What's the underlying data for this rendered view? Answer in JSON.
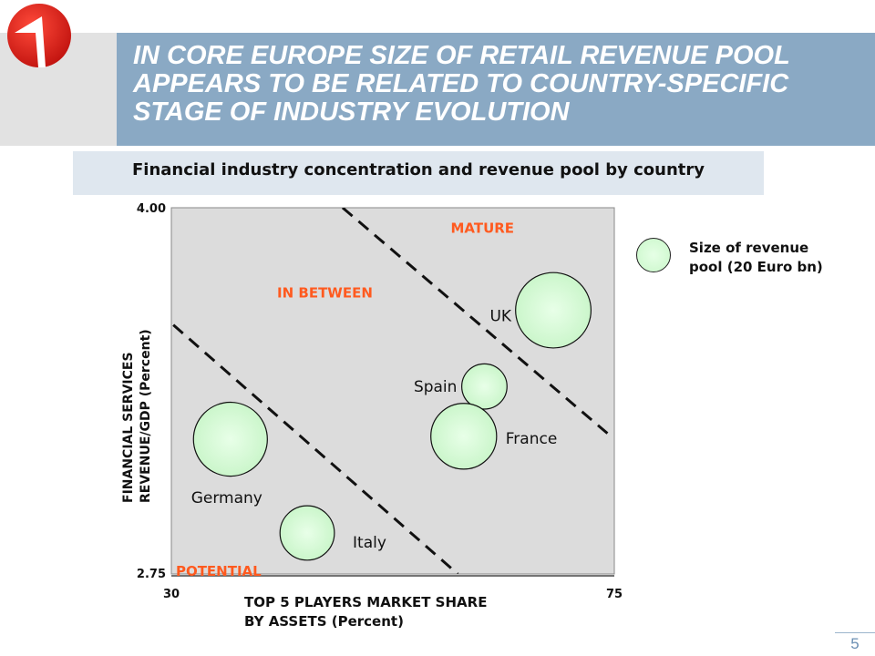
{
  "header": {
    "title_lines": [
      "IN CORE EUROPE SIZE OF RETAIL REVENUE POOL",
      "APPEARS TO BE RELATED TO COUNTRY-SPECIFIC",
      "STAGE OF INDUSTRY EVOLUTION"
    ],
    "subtitle": "Financial industry concentration and revenue pool by country"
  },
  "legend": {
    "line1": "Size of revenue",
    "line2": "pool (20 Euro bn)"
  },
  "page_number": "5",
  "colors": {
    "title_band": "#8aa9c4",
    "logo_red": "#d9231f",
    "region_label": "#ff5a1f",
    "plot_bg": "#dcdcdc",
    "bubble_fill": "#ccf7cc"
  },
  "chart_data": {
    "type": "scatter",
    "xlabel_lines": [
      "TOP 5 PLAYERS MARKET SHARE",
      "BY ASSETS (Percent)"
    ],
    "ylabel_lines": [
      "FINANCIAL SERVICES",
      "REVENUE/GDP (Percent)"
    ],
    "xlim": [
      30,
      75
    ],
    "ylim": [
      2.75,
      4.0
    ],
    "x_tick_labels": [
      "30",
      "75"
    ],
    "y_tick_labels": [
      "2.75",
      "4.00"
    ],
    "grid": false,
    "legend_placement": "right",
    "points": [
      {
        "label": "UK",
        "x": 68.8,
        "y": 3.65,
        "size": 1.25
      },
      {
        "label": "Spain",
        "x": 61.8,
        "y": 3.39,
        "size": 0.45
      },
      {
        "label": "France",
        "x": 59.7,
        "y": 3.22,
        "size": 0.95
      },
      {
        "label": "Germany",
        "x": 36.0,
        "y": 3.21,
        "size": 1.2
      },
      {
        "label": "Italy",
        "x": 43.8,
        "y": 2.89,
        "size": 0.65
      }
    ],
    "regions": [
      {
        "label": "MATURE",
        "x": 61.6,
        "y": 3.97
      },
      {
        "label": "IN BETWEEN",
        "x": 45.6,
        "y": 3.75
      },
      {
        "label": "POTENTIAL",
        "x": 34.8,
        "y": 2.8
      }
    ],
    "boundaries": [
      {
        "from": [
          47.4,
          4.0
        ],
        "to": [
          74.3,
          3.23
        ]
      },
      {
        "from": [
          30.2,
          3.6
        ],
        "to": [
          59.1,
          2.75
        ]
      }
    ]
  }
}
